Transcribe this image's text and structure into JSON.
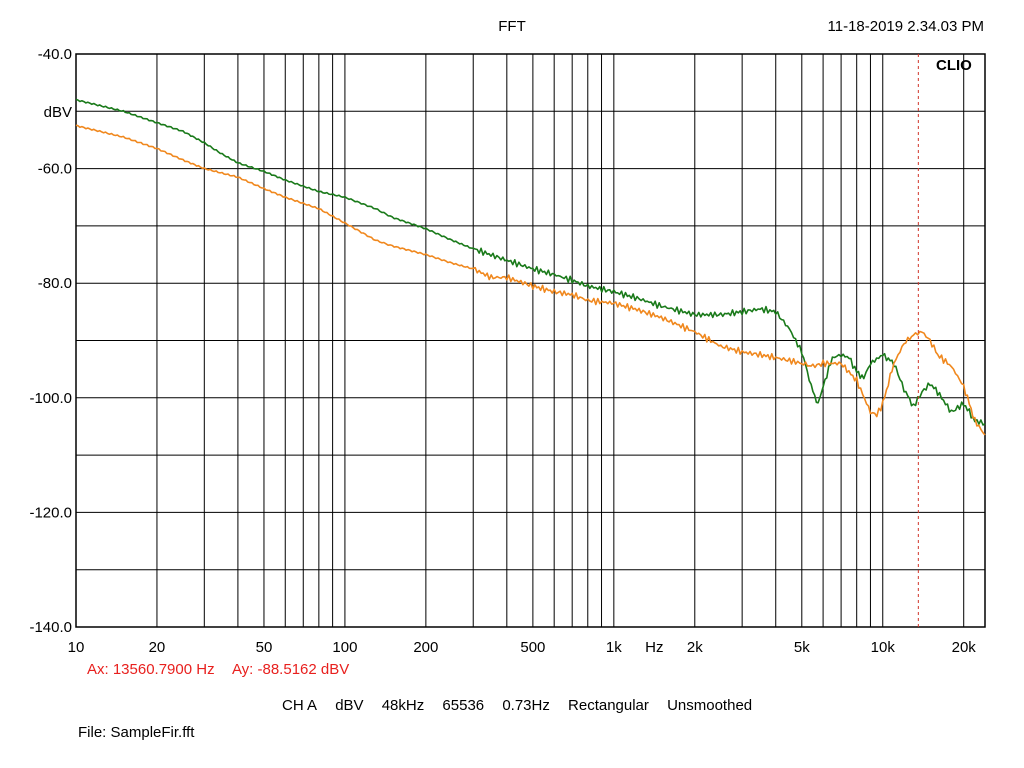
{
  "header": {
    "title": "FFT",
    "timestamp": "11-18-2019 2.34.03 PM"
  },
  "brand": "CLIO",
  "cursor": {
    "ax_label": "Ax: 13560.7900 Hz",
    "ay_label": "Ay: -88.5162 dBV"
  },
  "settings": [
    "CH A",
    "dBV",
    "48kHz",
    "65536",
    "0.73Hz",
    "Rectangular",
    "Unsmoothed"
  ],
  "file": "File: SampleFir.fft",
  "colors": {
    "series_green": "#1a7a1a",
    "series_orange": "#f0881e",
    "cursor": "#d0352a",
    "grid": "#000000"
  },
  "chart_data": {
    "type": "line",
    "xscale": "log",
    "xlim": [
      10,
      24000
    ],
    "ylim": [
      -140,
      -40
    ],
    "grid": true,
    "ylabel": "dBV",
    "x_ticks": [
      {
        "value": 10,
        "label": "10"
      },
      {
        "value": 20,
        "label": "20"
      },
      {
        "value": 50,
        "label": "50"
      },
      {
        "value": 100,
        "label": "100"
      },
      {
        "value": 200,
        "label": "200"
      },
      {
        "value": 500,
        "label": "500"
      },
      {
        "value": 1000,
        "label": "1k"
      },
      {
        "value": 2000,
        "label": "2k"
      },
      {
        "value": 5000,
        "label": "5k"
      },
      {
        "value": 10000,
        "label": "10k"
      },
      {
        "value": 20000,
        "label": "20k"
      }
    ],
    "x_unit_label": "Hz",
    "y_ticks": [
      {
        "value": -40,
        "label": "-40.0"
      },
      {
        "value": -60,
        "label": "-60.0"
      },
      {
        "value": -80,
        "label": "-80.0"
      },
      {
        "value": -100,
        "label": "-100.0"
      },
      {
        "value": -120,
        "label": "-120.0"
      },
      {
        "value": -140,
        "label": "-140.0"
      }
    ],
    "y_grid_step": 10,
    "cursor_x": 13560.79,
    "series": [
      {
        "color": "#1a7a1a",
        "points": [
          [
            10,
            -48
          ],
          [
            15,
            -50
          ],
          [
            20,
            -52
          ],
          [
            25,
            -53.5
          ],
          [
            30,
            -55.5
          ],
          [
            35,
            -57.5
          ],
          [
            40,
            -59
          ],
          [
            50,
            -60.5
          ],
          [
            60,
            -62
          ],
          [
            80,
            -64
          ],
          [
            100,
            -65
          ],
          [
            130,
            -67
          ],
          [
            150,
            -68.5
          ],
          [
            200,
            -70.5
          ],
          [
            250,
            -72.5
          ],
          [
            300,
            -74
          ],
          [
            400,
            -76
          ],
          [
            500,
            -77.5
          ],
          [
            600,
            -78.5
          ],
          [
            700,
            -79.5
          ],
          [
            800,
            -80.5
          ],
          [
            1000,
            -81.5
          ],
          [
            1200,
            -82.5
          ],
          [
            1500,
            -84
          ],
          [
            2000,
            -85.5
          ],
          [
            2500,
            -85.5
          ],
          [
            3000,
            -85
          ],
          [
            3500,
            -84.5
          ],
          [
            4000,
            -85
          ],
          [
            4500,
            -88
          ],
          [
            5000,
            -92
          ],
          [
            5500,
            -99
          ],
          [
            5750,
            -101
          ],
          [
            6000,
            -98
          ],
          [
            6500,
            -93
          ],
          [
            7000,
            -92.5
          ],
          [
            7500,
            -93
          ],
          [
            8000,
            -95.5
          ],
          [
            8500,
            -96.5
          ],
          [
            9000,
            -94
          ],
          [
            10000,
            -92.5
          ],
          [
            11000,
            -94
          ],
          [
            12000,
            -98.5
          ],
          [
            13000,
            -101.5
          ],
          [
            14000,
            -99
          ],
          [
            15000,
            -97.5
          ],
          [
            16000,
            -99
          ],
          [
            18000,
            -102.5
          ],
          [
            20000,
            -101
          ],
          [
            22000,
            -104
          ],
          [
            24000,
            -104.5
          ]
        ]
      },
      {
        "color": "#f0881e",
        "points": [
          [
            10,
            -52.5
          ],
          [
            15,
            -54.5
          ],
          [
            20,
            -56.5
          ],
          [
            25,
            -58.5
          ],
          [
            30,
            -60
          ],
          [
            40,
            -61.5
          ],
          [
            50,
            -63.5
          ],
          [
            60,
            -65
          ],
          [
            80,
            -67
          ],
          [
            100,
            -69.5
          ],
          [
            130,
            -72.5
          ],
          [
            150,
            -73.5
          ],
          [
            200,
            -75
          ],
          [
            250,
            -76.5
          ],
          [
            300,
            -77.5
          ],
          [
            350,
            -79
          ],
          [
            400,
            -79
          ],
          [
            500,
            -80.5
          ],
          [
            600,
            -81.5
          ],
          [
            700,
            -82
          ],
          [
            800,
            -83
          ],
          [
            1000,
            -83.5
          ],
          [
            1200,
            -84.5
          ],
          [
            1500,
            -86
          ],
          [
            2000,
            -88.5
          ],
          [
            2500,
            -91
          ],
          [
            3000,
            -92
          ],
          [
            3500,
            -92.5
          ],
          [
            4000,
            -93
          ],
          [
            4500,
            -93.5
          ],
          [
            5000,
            -94
          ],
          [
            5500,
            -94.5
          ],
          [
            6000,
            -94
          ],
          [
            7000,
            -94
          ],
          [
            8000,
            -97
          ],
          [
            9000,
            -102.5
          ],
          [
            9500,
            -103
          ],
          [
            10000,
            -101
          ],
          [
            11000,
            -94
          ],
          [
            12000,
            -90.5
          ],
          [
            13000,
            -89
          ],
          [
            14000,
            -88.5
          ],
          [
            15000,
            -90
          ],
          [
            16000,
            -92.5
          ],
          [
            18000,
            -94.5
          ],
          [
            20000,
            -98
          ],
          [
            22000,
            -104
          ],
          [
            24000,
            -106.5
          ]
        ]
      }
    ]
  }
}
